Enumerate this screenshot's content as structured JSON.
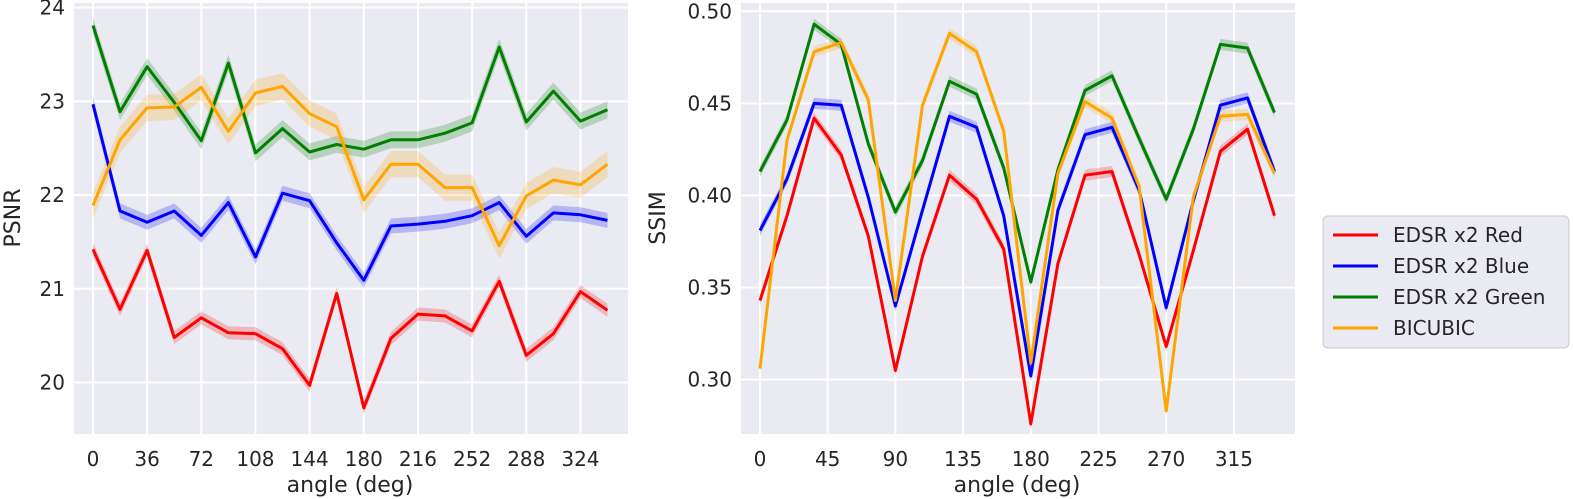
{
  "chart_data": [
    {
      "type": "line",
      "title": "",
      "xlabel": "angle (deg)",
      "ylabel": "PSNR",
      "xlim": [
        -12.6,
        355.6
      ],
      "ylim": [
        19.45,
        24.05
      ],
      "xticks": [
        0,
        36,
        72,
        108,
        144,
        180,
        216,
        252,
        288,
        324
      ],
      "yticks": [
        20,
        21,
        22,
        23,
        24
      ],
      "grid": true,
      "x": [
        0,
        18,
        36,
        54,
        72,
        90,
        108,
        126,
        144,
        162,
        180,
        198,
        216,
        234,
        252,
        270,
        288,
        306,
        324,
        342
      ],
      "series": [
        {
          "name": "EDSR x2 Red",
          "color": "#ff0000",
          "ci": 0.07,
          "values": [
            21.42,
            20.78,
            21.41,
            20.48,
            20.69,
            20.53,
            20.52,
            20.36,
            19.97,
            20.95,
            19.73,
            20.47,
            20.73,
            20.71,
            20.55,
            21.08,
            20.29,
            20.52,
            20.97,
            20.77
          ]
        },
        {
          "name": "EDSR x2 Blue",
          "color": "#0000ff",
          "ci": 0.08,
          "values": [
            22.97,
            21.83,
            21.71,
            21.83,
            21.57,
            21.92,
            21.34,
            22.02,
            21.94,
            21.49,
            21.09,
            21.67,
            21.69,
            21.72,
            21.78,
            21.92,
            21.56,
            21.81,
            21.79,
            21.73
          ]
        },
        {
          "name": "EDSR x2 Green",
          "color": "#008000",
          "ci": 0.09,
          "values": [
            23.81,
            22.89,
            23.37,
            22.99,
            22.58,
            23.41,
            22.45,
            22.71,
            22.46,
            22.54,
            22.49,
            22.59,
            22.59,
            22.66,
            22.77,
            23.58,
            22.78,
            23.11,
            22.79,
            22.91
          ]
        },
        {
          "name": "BICUBIC",
          "color": "#ffa500",
          "ci": 0.14,
          "values": [
            21.89,
            22.59,
            22.93,
            22.94,
            23.15,
            22.68,
            23.09,
            23.16,
            22.87,
            22.73,
            21.95,
            22.33,
            22.33,
            22.08,
            22.08,
            21.46,
            21.99,
            22.16,
            22.11,
            22.33
          ]
        }
      ]
    },
    {
      "type": "line",
      "title": "",
      "xlabel": "angle (deg)",
      "ylabel": "SSIM",
      "xlim": [
        -12.6,
        355.6
      ],
      "ylim": [
        0.2705,
        0.5045
      ],
      "xticks": [
        0,
        45,
        90,
        135,
        180,
        225,
        270,
        315
      ],
      "yticks": [
        0.3,
        0.35,
        0.4,
        0.45,
        0.5
      ],
      "ytick_labels": [
        "0.30",
        "0.35",
        "0.40",
        "0.45",
        "0.50"
      ],
      "grid": true,
      "x": [
        0,
        18,
        36,
        54,
        72,
        90,
        108,
        126,
        144,
        162,
        180,
        198,
        216,
        234,
        252,
        270,
        288,
        306,
        324,
        342
      ],
      "series": [
        {
          "name": "EDSR x2 Red",
          "color": "#ff0000",
          "ci": 0.003,
          "values": [
            0.343,
            0.389,
            0.442,
            0.422,
            0.378,
            0.305,
            0.367,
            0.411,
            0.398,
            0.371,
            0.276,
            0.363,
            0.411,
            0.413,
            0.368,
            0.318,
            0.37,
            0.424,
            0.436,
            0.389
          ]
        },
        {
          "name": "EDSR x2 Blue",
          "color": "#0000ff",
          "ci": 0.003,
          "values": [
            0.381,
            0.409,
            0.45,
            0.449,
            0.399,
            0.34,
            0.392,
            0.443,
            0.437,
            0.389,
            0.302,
            0.392,
            0.433,
            0.437,
            0.403,
            0.339,
            0.397,
            0.449,
            0.453,
            0.413
          ]
        },
        {
          "name": "EDSR x2 Green",
          "color": "#008000",
          "ci": 0.003,
          "values": [
            0.413,
            0.441,
            0.493,
            0.482,
            0.428,
            0.391,
            0.419,
            0.462,
            0.455,
            0.415,
            0.353,
            0.414,
            0.457,
            0.465,
            0.431,
            0.398,
            0.436,
            0.482,
            0.48,
            0.445
          ]
        },
        {
          "name": "BICUBIC",
          "color": "#ffa500",
          "ci": 0.003,
          "values": [
            0.306,
            0.43,
            0.478,
            0.483,
            0.452,
            0.343,
            0.449,
            0.488,
            0.478,
            0.435,
            0.309,
            0.412,
            0.451,
            0.442,
            0.405,
            0.283,
            0.399,
            0.443,
            0.444,
            0.412
          ]
        }
      ]
    }
  ],
  "legend": {
    "placement": "right",
    "entries": [
      "EDSR x2 Red",
      "EDSR x2 Blue",
      "EDSR x2 Green",
      "BICUBIC"
    ]
  }
}
